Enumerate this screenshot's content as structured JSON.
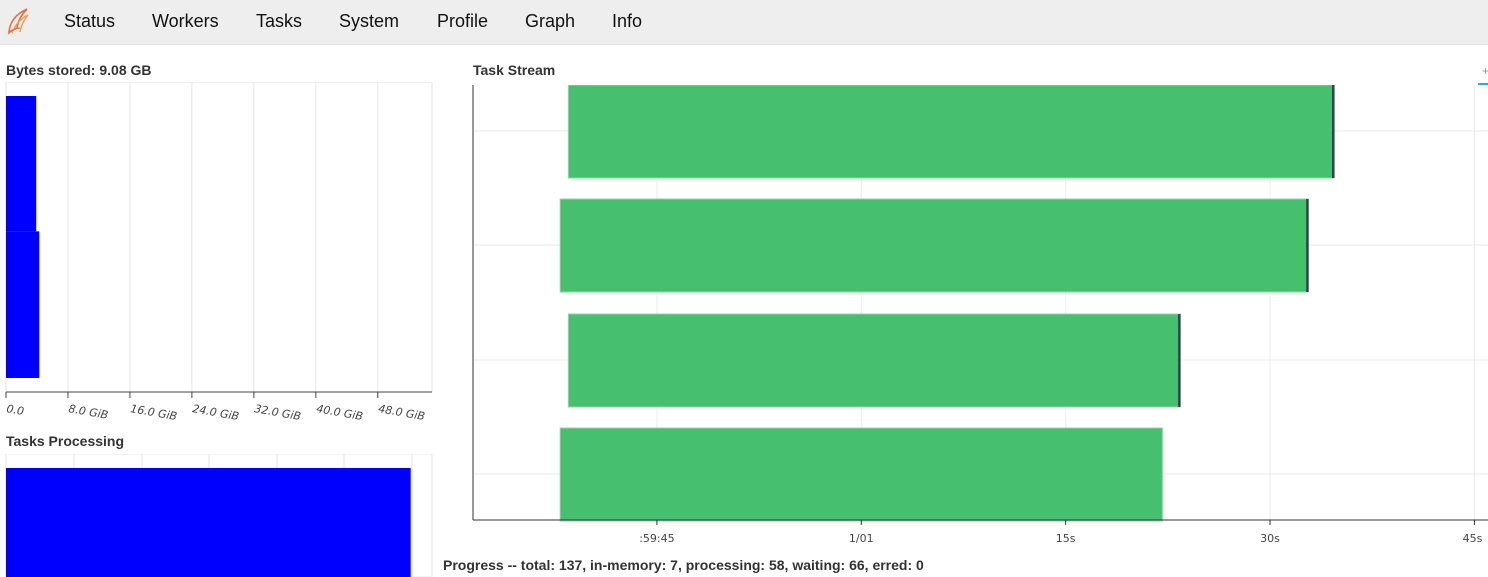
{
  "nav": {
    "items": [
      "Status",
      "Workers",
      "Tasks",
      "System",
      "Profile",
      "Graph",
      "Info"
    ]
  },
  "logo_icon": "dask-flame-icon",
  "colors": {
    "bar_fill": "#0000ff",
    "task_green": "#46bf6e",
    "task_end": "#3a3a5a",
    "navbar_bg": "#eeeeee"
  },
  "bytes_panel": {
    "title": "Bytes stored: 9.08 GB"
  },
  "tasks_panel": {
    "title": "Tasks Processing"
  },
  "stream_panel": {
    "title": "Task Stream"
  },
  "progress": {
    "text": "Progress -- total: 137, in-memory: 7, processing: 58, waiting: 66, erred: 0"
  },
  "chart_data": [
    {
      "type": "bar",
      "orientation": "horizontal",
      "title": "Bytes stored: 9.08 GB",
      "xlabel": "",
      "ylabel": "",
      "tick_labels": [
        "0.0",
        "8.0 GiB",
        "16.0 GiB",
        "24.0 GiB",
        "32.0 GiB",
        "40.0 GiB",
        "48.0 GiB"
      ],
      "xlim": [
        0,
        55
      ],
      "grid": true,
      "values": [
        3.9,
        4.3
      ],
      "segments": [
        [
          0,
          0.48
        ],
        [
          0.48,
          1.0
        ]
      ]
    },
    {
      "type": "bar",
      "orientation": "horizontal",
      "title": "Tasks Processing",
      "grid": true,
      "values": [
        0.95
      ]
    },
    {
      "type": "bar",
      "orientation": "horizontal",
      "title": "Task Stream",
      "tick_labels": [
        ":59:45",
        "1/01",
        "15s",
        "30s",
        "45s"
      ],
      "tick_seconds": [
        -15,
        0,
        15,
        30,
        45
      ],
      "xlim": [
        -28.5,
        46
      ],
      "grid": true,
      "bars": [
        {
          "start": -21.5,
          "end": 34.7
        },
        {
          "start": -22.1,
          "end": 32.8
        },
        {
          "start": -21.5,
          "end": 23.4
        },
        {
          "start": -22.1,
          "end": 22.1
        }
      ]
    }
  ]
}
